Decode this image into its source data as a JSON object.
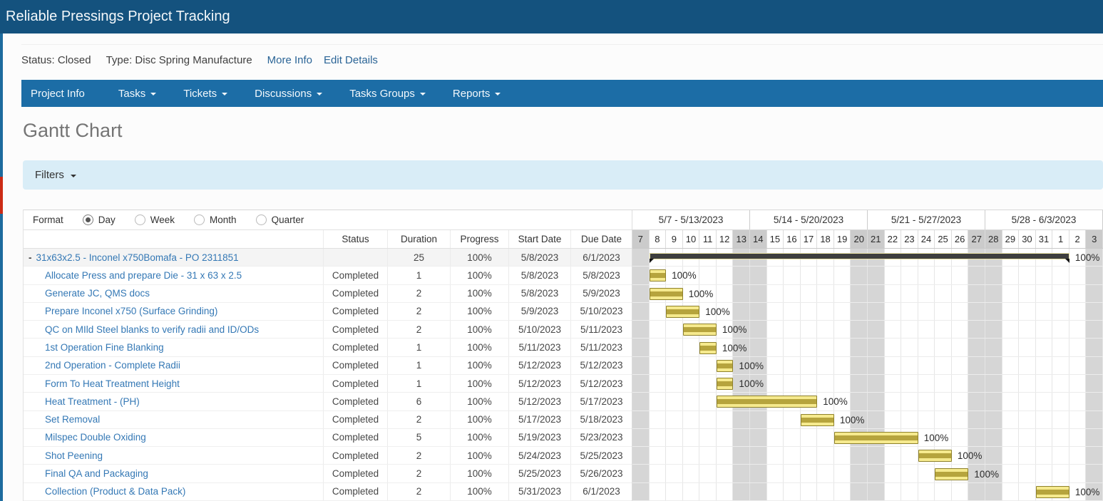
{
  "header": {
    "title": "Reliable Pressings Project Tracking"
  },
  "status_bar": {
    "status_text": "Status: Closed",
    "type_text": "Type: Disc Spring Manufacture",
    "more_info": "More Info",
    "edit_details": "Edit Details"
  },
  "nav": {
    "items": [
      {
        "label": "Project Info",
        "caret": false
      },
      {
        "label": "Tasks",
        "caret": true
      },
      {
        "label": "Tickets",
        "caret": true
      },
      {
        "label": "Discussions",
        "caret": true
      },
      {
        "label": "Tasks Groups",
        "caret": true
      },
      {
        "label": "Reports",
        "caret": true
      }
    ]
  },
  "page": {
    "title": "Gantt Chart"
  },
  "filters": {
    "label": "Filters"
  },
  "format": {
    "label": "Format",
    "options": [
      "Day",
      "Week",
      "Month",
      "Quarter"
    ],
    "selected": "Day"
  },
  "table": {
    "columns": [
      "Status",
      "Duration",
      "Progress",
      "Start Date",
      "Due Date"
    ]
  },
  "tasks": [
    {
      "name": "31x63x2.5 - Inconel x750Bomafa - PO 2311851",
      "summary": true,
      "collapse_glyph": "-",
      "status": "",
      "duration": "25",
      "progress": "100%",
      "start": "5/8/2023",
      "due": "6/1/2023"
    },
    {
      "name": "Allocate Press and prepare Die - 31 x 63 x 2.5",
      "summary": false,
      "status": "Completed",
      "duration": "1",
      "progress": "100%",
      "start": "5/8/2023",
      "due": "5/8/2023"
    },
    {
      "name": "Generate JC, QMS docs",
      "summary": false,
      "status": "Completed",
      "duration": "2",
      "progress": "100%",
      "start": "5/8/2023",
      "due": "5/9/2023"
    },
    {
      "name": "Prepare Inconel x750 (Surface Grinding)",
      "summary": false,
      "status": "Completed",
      "duration": "2",
      "progress": "100%",
      "start": "5/9/2023",
      "due": "5/10/2023"
    },
    {
      "name": "QC on MIld Steel blanks to verify radii and ID/ODs",
      "summary": false,
      "status": "Completed",
      "duration": "2",
      "progress": "100%",
      "start": "5/10/2023",
      "due": "5/11/2023"
    },
    {
      "name": "1st Operation Fine Blanking",
      "summary": false,
      "status": "Completed",
      "duration": "1",
      "progress": "100%",
      "start": "5/11/2023",
      "due": "5/11/2023"
    },
    {
      "name": "2nd Operation - Complete Radii",
      "summary": false,
      "status": "Completed",
      "duration": "1",
      "progress": "100%",
      "start": "5/12/2023",
      "due": "5/12/2023"
    },
    {
      "name": "Form To Heat Treatment Height",
      "summary": false,
      "status": "Completed",
      "duration": "1",
      "progress": "100%",
      "start": "5/12/2023",
      "due": "5/12/2023"
    },
    {
      "name": "Heat Treatment - (PH)",
      "summary": false,
      "status": "Completed",
      "duration": "6",
      "progress": "100%",
      "start": "5/12/2023",
      "due": "5/17/2023"
    },
    {
      "name": "Set Removal",
      "summary": false,
      "status": "Completed",
      "duration": "2",
      "progress": "100%",
      "start": "5/17/2023",
      "due": "5/18/2023"
    },
    {
      "name": "Milspec Double Oxiding",
      "summary": false,
      "status": "Completed",
      "duration": "5",
      "progress": "100%",
      "start": "5/19/2023",
      "due": "5/23/2023"
    },
    {
      "name": "Shot Peening",
      "summary": false,
      "status": "Completed",
      "duration": "2",
      "progress": "100%",
      "start": "5/24/2023",
      "due": "5/25/2023"
    },
    {
      "name": "Final QA and Packaging",
      "summary": false,
      "status": "Completed",
      "duration": "2",
      "progress": "100%",
      "start": "5/25/2023",
      "due": "5/26/2023"
    },
    {
      "name": "Collection (Product & Data Pack)",
      "summary": false,
      "status": "Completed",
      "duration": "2",
      "progress": "100%",
      "start": "5/31/2023",
      "due": "6/1/2023"
    }
  ],
  "gantt": {
    "start_date": "5/7/2023",
    "weeks": [
      "5/7 - 5/13/2023",
      "5/14 - 5/20/2023",
      "5/21 - 5/27/2023",
      "5/28 - 6/3/2023"
    ],
    "days": [
      "7",
      "8",
      "9",
      "10",
      "11",
      "12",
      "13",
      "14",
      "15",
      "16",
      "17",
      "18",
      "19",
      "20",
      "21",
      "22",
      "23",
      "24",
      "25",
      "26",
      "27",
      "28",
      "29",
      "30",
      "31",
      "1",
      "2",
      "3"
    ]
  },
  "colors": {
    "header_bg": "#14527e",
    "nav_bg": "#1c6da6",
    "link": "#2a6496",
    "task_link": "#3478b5",
    "filters_bg": "#d9edf7",
    "bar_fill": "#f6ea8e",
    "bar_stripe": "#b6a43d",
    "bar_border": "#8e812b",
    "summary_bar": "#3e3e3e",
    "weekend_shade": "#d6d6d6",
    "edge_strip_blue": "#1d6b9e",
    "edge_strip_red": "#cc2b16"
  }
}
